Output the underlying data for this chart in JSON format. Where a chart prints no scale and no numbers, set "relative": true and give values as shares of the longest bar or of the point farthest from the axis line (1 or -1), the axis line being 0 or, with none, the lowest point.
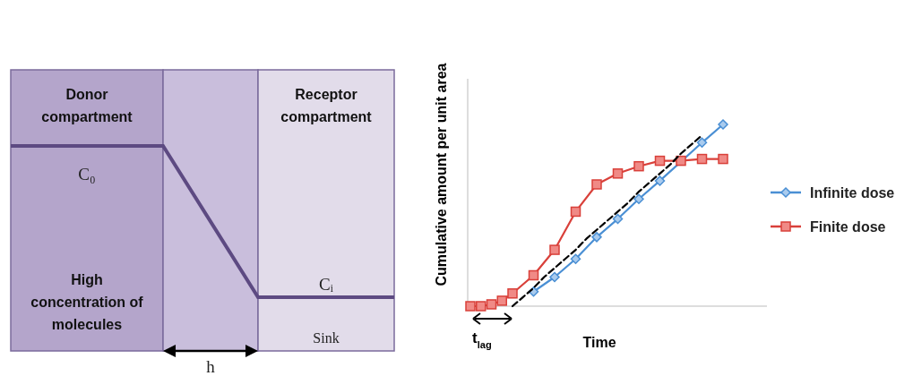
{
  "chart_data": [
    {
      "type": "other",
      "annotations": [
        "Donor compartment",
        "Receptor compartment",
        "C₀",
        "Cᵢ",
        "High concentration of molecules",
        "Sink",
        "h"
      ]
    },
    {
      "type": "line",
      "relative": true,
      "xlabel": "Time",
      "ylabel": "Cumulative amount per unit area",
      "legend": "right",
      "categories": [
        null,
        null,
        null,
        null,
        null,
        null,
        null,
        null,
        null,
        null,
        null,
        null,
        null,
        null,
        null,
        null,
        null,
        null,
        null,
        null,
        null,
        null,
        null,
        null,
        null
      ],
      "annotations": [
        "t$_{lag}$"
      ],
      "series": [
        {
          "name": "Infinite dose",
          "color": "#4a8fd4",
          "marker": "diamond",
          "values": [
            null,
            null,
            null,
            null,
            null,
            null,
            0.08,
            null,
            0.16,
            null,
            0.26,
            null,
            0.38,
            null,
            0.48,
            null,
            0.59,
            null,
            0.69,
            null,
            null,
            null,
            0.9,
            null,
            1
          ]
        },
        {
          "name": "Finite dose",
          "color": "#d9403a",
          "marker": "square",
          "values": [
            0,
            0,
            0.01,
            0.03,
            0.07,
            null,
            0.17,
            null,
            0.31,
            null,
            0.52,
            null,
            0.67,
            null,
            0.73,
            null,
            0.77,
            null,
            0.8,
            null,
            0.8,
            null,
            0.81,
            null,
            0.81
          ]
        },
        {
          "color": "#000000",
          "marker": "none",
          "line_style": "dashed",
          "values": [
            null,
            null,
            null,
            null,
            0,
            0.05,
            0.1,
            0.16,
            0.21,
            0.26,
            0.31,
            0.37,
            0.42,
            0.47,
            0.52,
            0.57,
            0.63,
            0.68,
            0.73,
            0.78,
            0.84,
            0.89,
            0.94,
            null,
            null
          ]
        }
      ]
    }
  ]
}
